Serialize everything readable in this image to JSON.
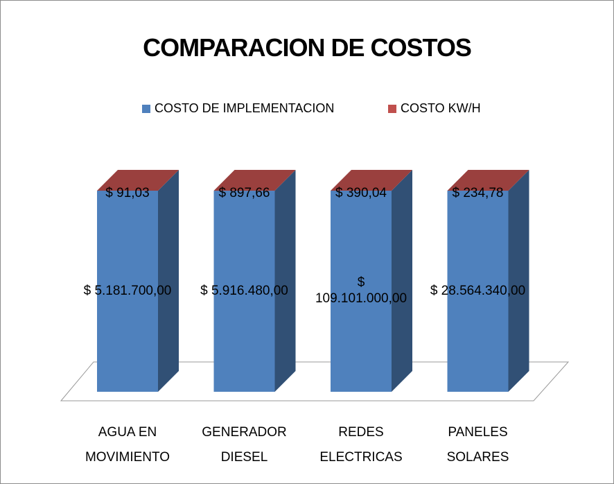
{
  "chart_data": {
    "type": "stacked3d100",
    "title": "COMPARACION DE COSTOS",
    "categories": [
      "AGUA EN MOVIMIENTO",
      "GENERADOR DIESEL",
      "REDES ELECTRICAS",
      "PANELES SOLARES"
    ],
    "series": [
      {
        "name": "COSTO DE IMPLEMENTACION",
        "color": "#4f81bd",
        "values": [
          5181700,
          5916480,
          109101000,
          28564340
        ],
        "value_labels": [
          "$ 5.181.700,00",
          "$ 5.916.480,00",
          "$ 109.101.000,00",
          "$ 28.564.340,00"
        ]
      },
      {
        "name": "COSTO KW/H",
        "color": "#c0504d",
        "values": [
          91.03,
          897.66,
          390.04,
          234.78
        ],
        "value_labels": [
          "$ 91,03",
          "$ 897,66",
          "$ 390,04",
          "$ 234,78"
        ]
      }
    ],
    "legend": "top"
  }
}
